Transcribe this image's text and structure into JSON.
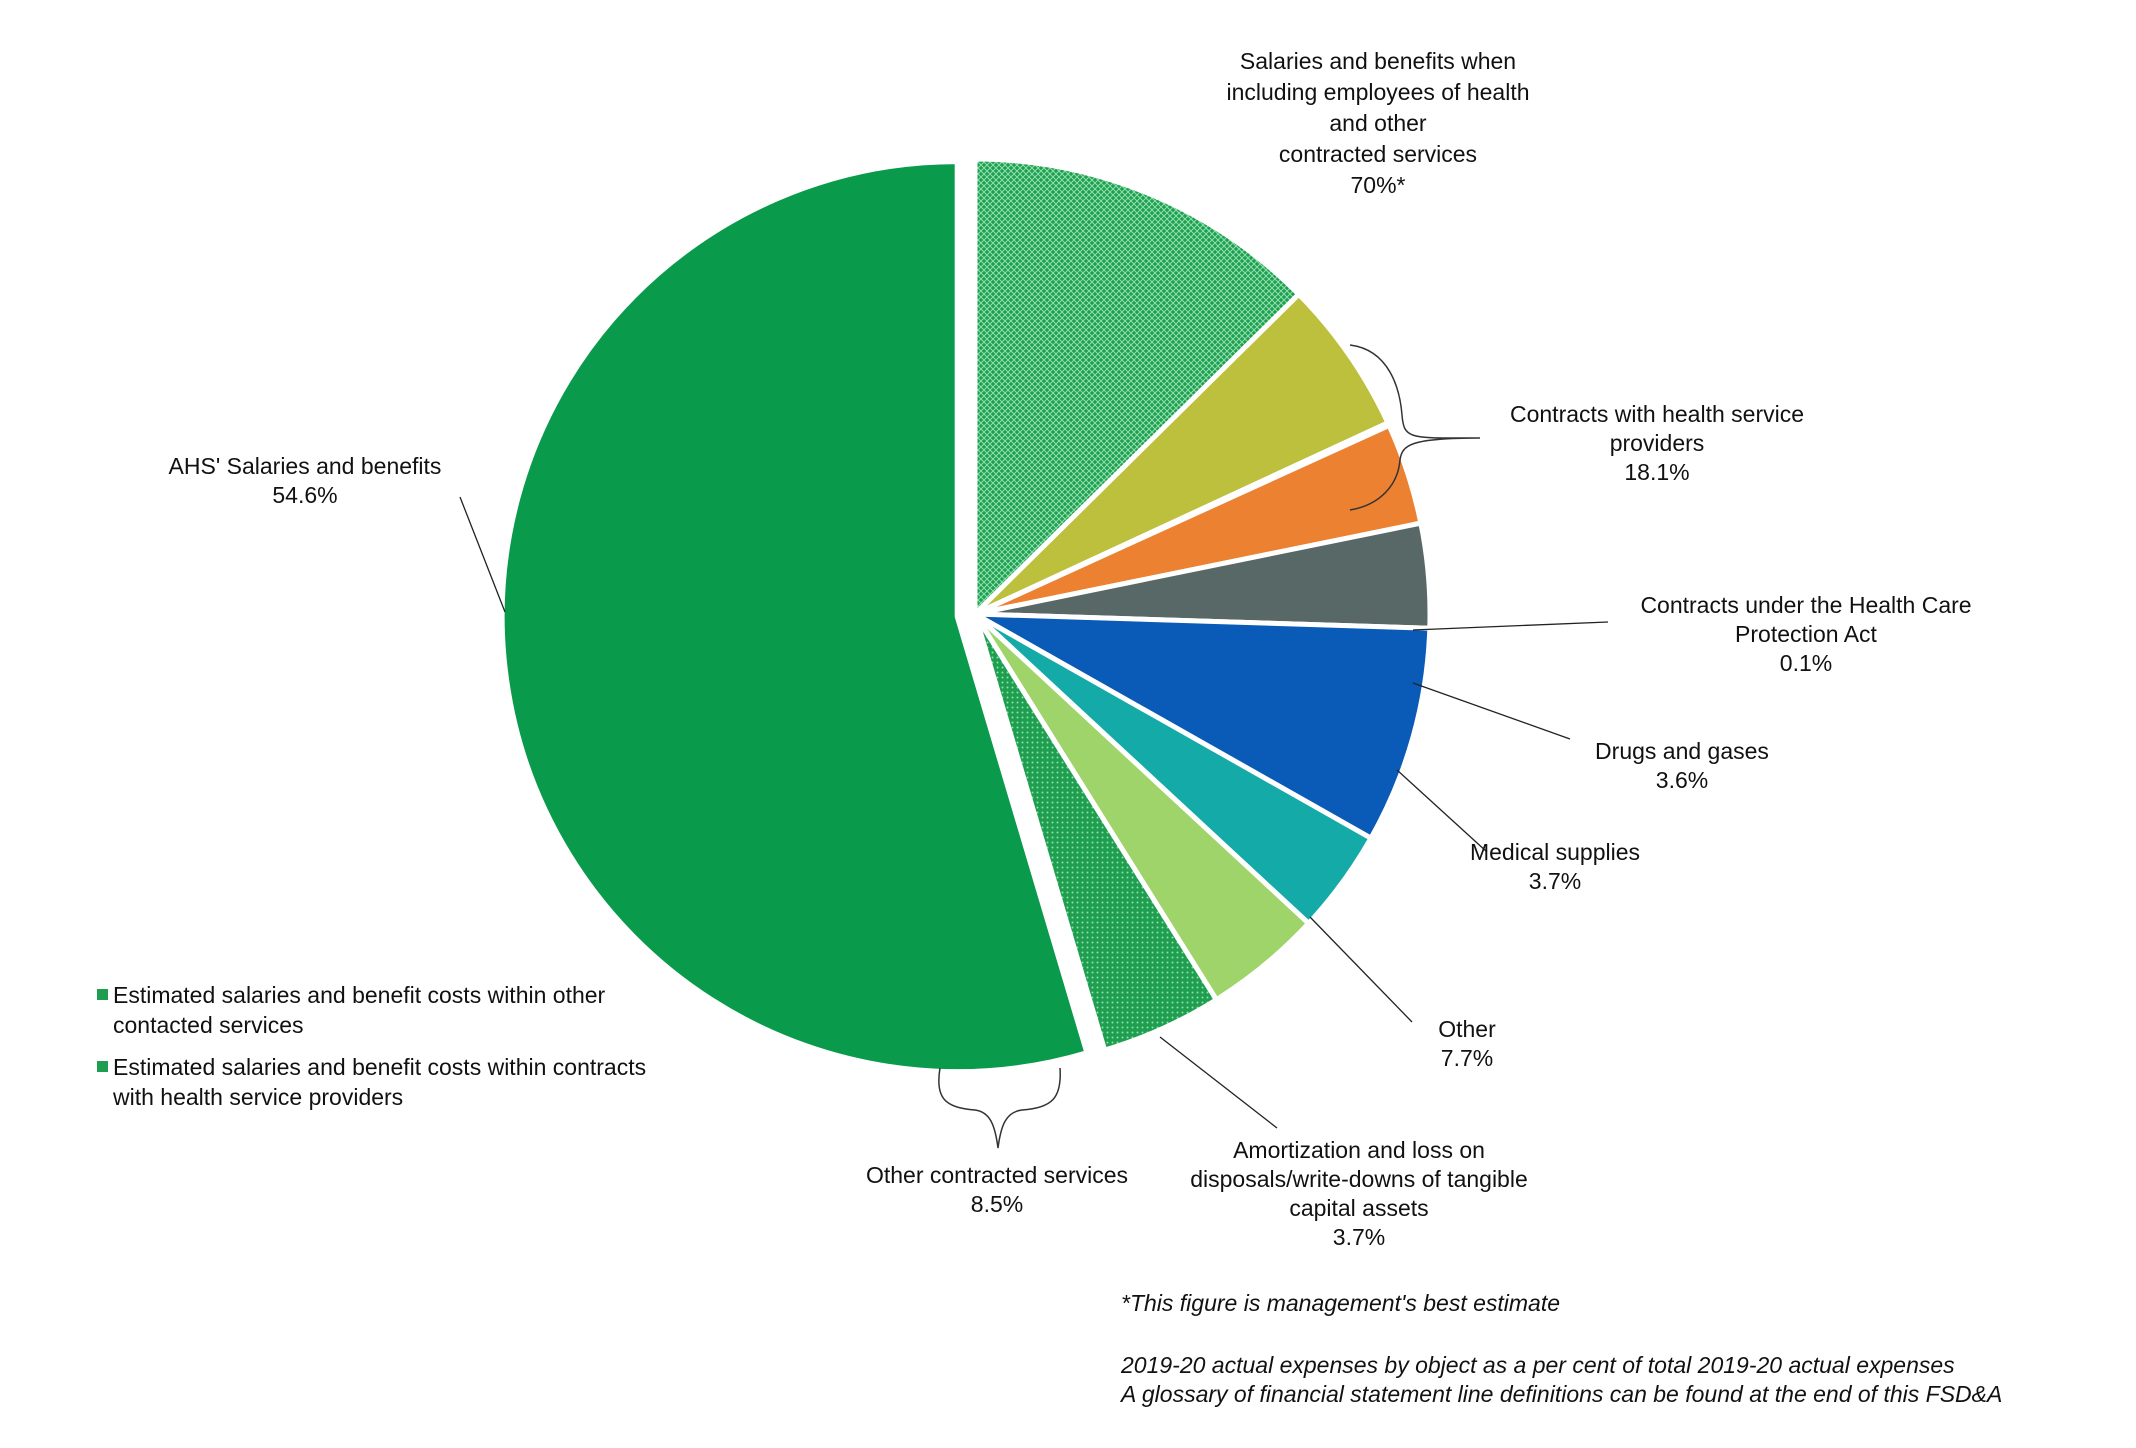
{
  "chart_data": {
    "type": "pie",
    "slices": [
      {
        "key": "ahs",
        "label": "AHS' Salaries and benefits",
        "value": 54.6,
        "value_label": "54.6%",
        "color": "#0a9a4c"
      },
      {
        "key": "hsp_sal",
        "label": "",
        "value": 12.6,
        "value_label": "",
        "color": "#1f9e50",
        "pattern": "crosshatch"
      },
      {
        "key": "hsp_other",
        "label": "",
        "value": 5.5,
        "value_label": "",
        "color": "#bcc03c"
      },
      {
        "key": "hcpa",
        "label": "Contracts under the Health Care Protection Act",
        "value": 0.1,
        "value_label": "0.1%",
        "color": "#e3e14a"
      },
      {
        "key": "drugs",
        "label": "Drugs and gases",
        "value": 3.6,
        "value_label": "3.6%",
        "color": "#ec8132"
      },
      {
        "key": "medical",
        "label": "Medical supplies",
        "value": 3.7,
        "value_label": "3.7%",
        "color": "#586867"
      },
      {
        "key": "other",
        "label": "Other",
        "value": 7.7,
        "value_label": "7.7%",
        "color": "#0a5ab8"
      },
      {
        "key": "amort",
        "label": "Amortization and loss on disposals/write-downs of tangible capital assets",
        "value": 3.7,
        "value_label": "3.7%",
        "color": "#14aaa8"
      },
      {
        "key": "ocs_other",
        "label": "",
        "value": 4.2,
        "value_label": "",
        "color": "#9fd46a"
      },
      {
        "key": "ocs_sal",
        "label": "",
        "value": 4.3,
        "value_label": "",
        "color": "#1f9e50",
        "pattern": "dots"
      }
    ],
    "groups": [
      {
        "label": "Contracts with health service providers",
        "value_label": "18.1%",
        "slices": [
          "hsp_sal",
          "hsp_other"
        ]
      },
      {
        "label": "Other contracted services",
        "value_label": "8.5%",
        "slices": [
          "ocs_other",
          "ocs_sal"
        ]
      },
      {
        "label": "Salaries and benefits when including employees of health and other contracted services",
        "value_label": "70%*",
        "slices": [
          "ahs",
          "hsp_sal",
          "ocs_sal"
        ]
      }
    ]
  },
  "labels": {
    "ahs": {
      "lines": [
        "AHS' Salaries and benefits",
        "54.6%"
      ]
    },
    "hsp": {
      "lines": [
        "Contracts with  health service",
        "providers",
        "18.1%"
      ]
    },
    "hcpa": {
      "lines": [
        "Contracts under the Health Care",
        "Protection Act",
        "0.1%"
      ]
    },
    "drugs": {
      "lines": [
        "Drugs and gases",
        "3.6%"
      ]
    },
    "medical": {
      "lines": [
        "Medical supplies",
        "3.7%"
      ]
    },
    "other": {
      "lines": [
        "Other",
        "7.7%"
      ]
    },
    "amort": {
      "lines": [
        "Amortization and  loss on",
        "disposals/write-downs  of tangible",
        "capital assets",
        "3.7%"
      ]
    },
    "ocs": {
      "lines": [
        "Other contracted services",
        "8.5%"
      ]
    },
    "salaries_total": {
      "lines": [
        "Salaries and benefits when",
        "including employees of health",
        "and other",
        "contracted services",
        "70%*"
      ]
    }
  },
  "legend": {
    "items": [
      {
        "text": "Estimated salaries and benefit costs within other contacted services",
        "color": "#1f9e50"
      },
      {
        "text": "Estimated salaries and benefit costs within contracts with health service providers",
        "color": "#1f9e50"
      }
    ]
  },
  "notes": {
    "estimate": "*This figure is management's best estimate",
    "line1": "2019-20 actual expenses by object as a per cent of total 2019-20 actual expenses",
    "line2": "A glossary of financial statement line definitions can be found at the end of this FSD&A"
  }
}
